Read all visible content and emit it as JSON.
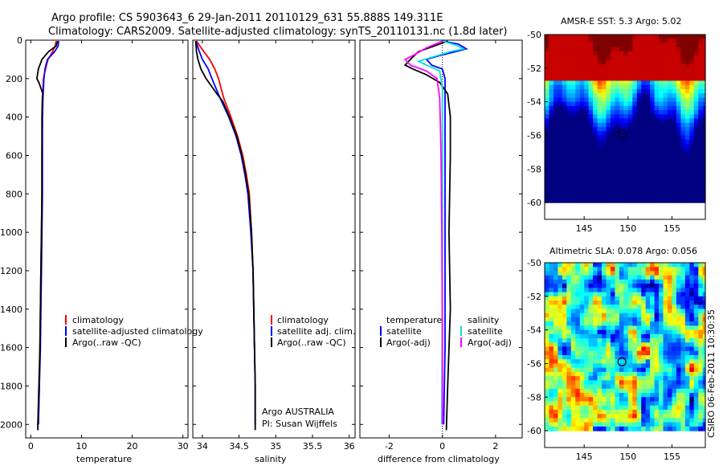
{
  "title": {
    "line1": "Argo profile: CS 5903643_6 29-Jan-2011 20110129_631 55.888S 149.311E",
    "line2": "Climatology: CARS2009. Satellite-adjusted climatology: synTS_20110131.nc (1.8d later)"
  },
  "side_label": "CSIRO 06-Feb-2011 10:30:35",
  "colors": {
    "climatology": "#ff0000",
    "satellite": "#0000ff",
    "argo": "#000000",
    "sal_satellite": "#00e0e0",
    "sal_argo": "#ff00ff"
  },
  "chart_data": [
    {
      "type": "line",
      "id": "temperature-profile",
      "xlabel": "temperature",
      "ylabel": "",
      "xlim": [
        -1,
        31
      ],
      "ylim": [
        2070,
        0
      ],
      "xticks": [
        0,
        10,
        20,
        30
      ],
      "yticks": [
        0,
        200,
        400,
        600,
        800,
        1000,
        1200,
        1400,
        1600,
        1800,
        2000
      ],
      "legend": [
        "climatology",
        "satellite-adjusted climatology",
        "Argo(..raw -QC)"
      ],
      "series": [
        {
          "name": "climatology",
          "color": "#ff0000",
          "points": [
            [
              5.0,
              5
            ],
            [
              4.8,
              30
            ],
            [
              4.3,
              60
            ],
            [
              3.4,
              100
            ],
            [
              2.9,
              150
            ],
            [
              2.5,
              200
            ],
            [
              2.4,
              250
            ],
            [
              2.3,
              300
            ],
            [
              2.3,
              400
            ],
            [
              2.2,
              600
            ],
            [
              2.2,
              800
            ],
            [
              2.1,
              1000
            ],
            [
              2.0,
              1200
            ],
            [
              1.9,
              1400
            ],
            [
              1.8,
              1600
            ],
            [
              1.7,
              1800
            ],
            [
              1.5,
              2000
            ]
          ]
        },
        {
          "name": "satellite-adjusted climatology",
          "color": "#0000ff",
          "points": [
            [
              5.5,
              5
            ],
            [
              5.4,
              30
            ],
            [
              4.7,
              60
            ],
            [
              3.3,
              100
            ],
            [
              2.8,
              150
            ],
            [
              2.6,
              200
            ],
            [
              2.5,
              250
            ],
            [
              2.4,
              300
            ],
            [
              2.3,
              400
            ],
            [
              2.3,
              600
            ],
            [
              2.3,
              800
            ],
            [
              2.2,
              1000
            ],
            [
              2.1,
              1200
            ],
            [
              2.0,
              1400
            ],
            [
              1.9,
              1600
            ],
            [
              1.7,
              1800
            ],
            [
              1.5,
              2000
            ]
          ]
        },
        {
          "name": "Argo(..raw -QC)",
          "color": "#000000",
          "points": [
            [
              5.3,
              5
            ],
            [
              5.0,
              30
            ],
            [
              3.5,
              60
            ],
            [
              2.2,
              100
            ],
            [
              1.5,
              150
            ],
            [
              1.2,
              200
            ],
            [
              1.6,
              220
            ],
            [
              2.4,
              280
            ],
            [
              2.3,
              300
            ],
            [
              2.2,
              400
            ],
            [
              2.2,
              600
            ],
            [
              2.2,
              800
            ],
            [
              2.1,
              1000
            ],
            [
              2.0,
              1200
            ],
            [
              1.9,
              1400
            ],
            [
              1.8,
              1600
            ],
            [
              1.6,
              1800
            ],
            [
              1.4,
              2000
            ],
            [
              1.4,
              2030
            ]
          ]
        }
      ]
    },
    {
      "type": "line",
      "id": "salinity-profile",
      "xlabel": "salinity",
      "ylabel": "",
      "xlim": [
        33.87,
        36.08
      ],
      "ylim": [
        2070,
        0
      ],
      "xticks": [
        34,
        34.5,
        35,
        35.5,
        36
      ],
      "legend": [
        "climatology",
        "satellite adj. clim.",
        "Argo(..raw -QC)"
      ],
      "annotation": [
        "Argo AUSTRALIA",
        "PI: Susan Wijffels"
      ],
      "series": [
        {
          "name": "climatology",
          "color": "#ff0000",
          "points": [
            [
              33.92,
              5
            ],
            [
              34.02,
              60
            ],
            [
              34.1,
              100
            ],
            [
              34.17,
              150
            ],
            [
              34.22,
              200
            ],
            [
              34.29,
              300
            ],
            [
              34.39,
              400
            ],
            [
              34.48,
              500
            ],
            [
              34.55,
              600
            ],
            [
              34.6,
              700
            ],
            [
              34.64,
              800
            ],
            [
              34.67,
              1000
            ],
            [
              34.69,
              1200
            ],
            [
              34.7,
              1400
            ],
            [
              34.71,
              1600
            ]
          ]
        },
        {
          "name": "satellite adj. clim.",
          "color": "#0000ff",
          "points": [
            [
              33.91,
              5
            ],
            [
              33.96,
              60
            ],
            [
              34.0,
              100
            ],
            [
              34.08,
              150
            ],
            [
              34.13,
              200
            ],
            [
              34.24,
              300
            ],
            [
              34.36,
              400
            ],
            [
              34.46,
              500
            ],
            [
              34.53,
              600
            ],
            [
              34.58,
              700
            ],
            [
              34.62,
              800
            ],
            [
              34.66,
              1000
            ],
            [
              34.69,
              1200
            ],
            [
              34.7,
              1400
            ],
            [
              34.71,
              1600
            ],
            [
              34.72,
              1800
            ],
            [
              34.72,
              2000
            ]
          ]
        },
        {
          "name": "Argo(..raw -QC)",
          "color": "#000000",
          "points": [
            [
              33.91,
              5
            ],
            [
              33.92,
              60
            ],
            [
              33.94,
              100
            ],
            [
              33.98,
              150
            ],
            [
              34.05,
              200
            ],
            [
              34.2,
              280
            ],
            [
              34.28,
              320
            ],
            [
              34.37,
              400
            ],
            [
              34.47,
              500
            ],
            [
              34.54,
              600
            ],
            [
              34.59,
              700
            ],
            [
              34.63,
              800
            ],
            [
              34.67,
              1000
            ],
            [
              34.69,
              1200
            ],
            [
              34.7,
              1400
            ],
            [
              34.71,
              1600
            ],
            [
              34.72,
              1800
            ],
            [
              34.72,
              2030
            ]
          ]
        }
      ]
    },
    {
      "type": "line",
      "id": "difference-profile",
      "xlabel": "difference from climatology",
      "ylabel": "",
      "xlim": [
        -3.1,
        3.0
      ],
      "ylim": [
        2070,
        0
      ],
      "xticks": [
        -2,
        0,
        2
      ],
      "legend_temperature": [
        "temperature",
        "satellite",
        "Argo(-adj)"
      ],
      "legend_salinity": [
        "salinity",
        "satellite",
        "Argo(-adj)"
      ],
      "series": [
        {
          "name": "temperature satellite",
          "color": "#0000ff",
          "points": [
            [
              0,
              5
            ],
            [
              0.6,
              20
            ],
            [
              0.9,
              45
            ],
            [
              0.5,
              60
            ],
            [
              -0.1,
              80
            ],
            [
              -0.6,
              100
            ],
            [
              -0.4,
              130
            ],
            [
              0.0,
              150
            ],
            [
              0.1,
              200
            ],
            [
              0.1,
              300
            ],
            [
              0.1,
              500
            ],
            [
              0.1,
              800
            ],
            [
              0.1,
              1200
            ],
            [
              0.1,
              1600
            ],
            [
              0.05,
              2000
            ]
          ]
        },
        {
          "name": "temperature Argo(-adj)",
          "color": "#000000",
          "points": [
            [
              0.2,
              5
            ],
            [
              -0.3,
              30
            ],
            [
              -0.9,
              60
            ],
            [
              -1.2,
              100
            ],
            [
              -1.4,
              130
            ],
            [
              -1.1,
              150
            ],
            [
              -0.6,
              180
            ],
            [
              -0.1,
              220
            ],
            [
              0.2,
              280
            ],
            [
              0.3,
              400
            ],
            [
              0.3,
              600
            ],
            [
              0.25,
              1000
            ],
            [
              0.3,
              1400
            ],
            [
              0.2,
              1800
            ],
            [
              0.15,
              2030
            ]
          ]
        },
        {
          "name": "salinity satellite",
          "color": "#00e0e0",
          "points": [
            [
              0,
              5
            ],
            [
              0.5,
              25
            ],
            [
              0.8,
              45
            ],
            [
              0.3,
              60
            ],
            [
              -0.3,
              85
            ],
            [
              -0.9,
              110
            ],
            [
              -0.6,
              130
            ],
            [
              -0.1,
              160
            ],
            [
              0.0,
              250
            ],
            [
              0.0,
              600
            ],
            [
              0.0,
              1200
            ],
            [
              -0.02,
              2000
            ]
          ]
        },
        {
          "name": "salinity Argo(-adj)",
          "color": "#ff00ff",
          "points": [
            [
              0,
              5
            ],
            [
              -0.6,
              40
            ],
            [
              -1.1,
              80
            ],
            [
              -1.4,
              100
            ],
            [
              -1.2,
              130
            ],
            [
              -0.6,
              160
            ],
            [
              -0.2,
              200
            ],
            [
              -0.1,
              300
            ],
            [
              -0.08,
              400
            ],
            [
              -0.05,
              600
            ],
            [
              -0.02,
              1000
            ],
            [
              0.0,
              1500
            ],
            [
              0.0,
              2000
            ]
          ]
        }
      ]
    },
    {
      "type": "heatmap",
      "id": "sst-map",
      "title": "AMSR-E SST: 5.3 Argo: 5.02",
      "xlim": [
        140.5,
        158.8
      ],
      "ylim": [
        -61,
        -50
      ],
      "data_ylim": [
        -60,
        -50
      ],
      "xticks": [
        145,
        150,
        155
      ],
      "yticks": [
        -50,
        -52,
        -54,
        -56,
        -58,
        -60
      ],
      "marker": {
        "lon": 149.3,
        "lat": -55.9
      }
    },
    {
      "type": "heatmap",
      "id": "sla-map",
      "title": "Altimetric SLA: 0.078 Argo: 0.056",
      "xlim": [
        140.5,
        158.8
      ],
      "ylim": [
        -61,
        -50
      ],
      "data_ylim": [
        -60,
        -50
      ],
      "xticks": [
        145,
        150,
        155
      ],
      "yticks": [
        -50,
        -52,
        -54,
        -56,
        -58,
        -60
      ],
      "marker": {
        "lon": 149.3,
        "lat": -55.9
      }
    }
  ]
}
